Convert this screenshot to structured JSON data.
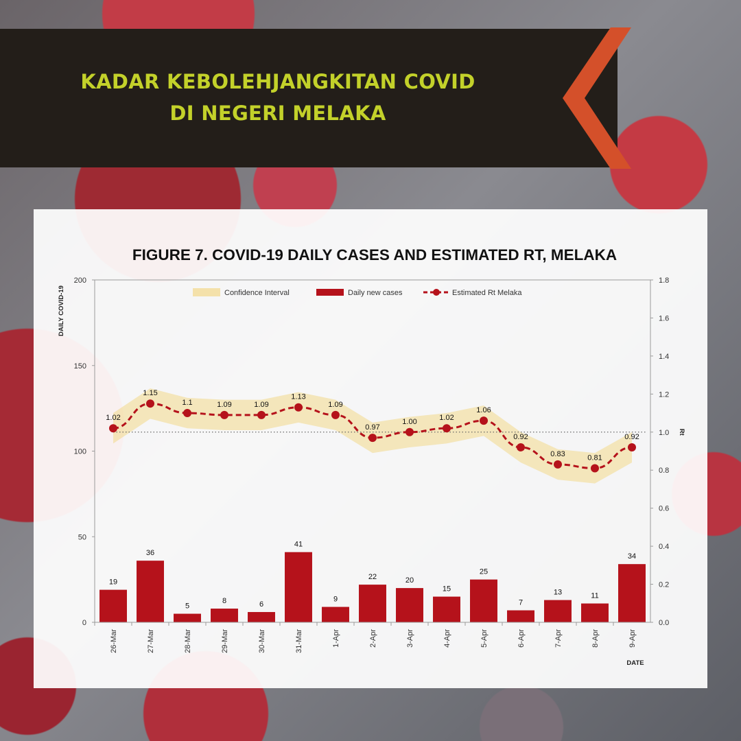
{
  "header": {
    "title_line1": "KADAR KEBOLEHJANGKITAN COVID",
    "title_line2": "DI NEGERI MELAKA"
  },
  "colors": {
    "banner": "#231e19",
    "title": "#c3d12a",
    "chevron": "#d4502a",
    "bar": "#b5121b",
    "line": "#b5121b",
    "ci_band": "#f3d98a"
  },
  "chart_data": {
    "type": "bar",
    "title": "FIGURE 7. COVID-19 DAILY CASES AND ESTIMATED RT, MELAKA",
    "xlabel": "DATE",
    "ylabel": "DAILY COVID-19",
    "y2label": "Rt",
    "categories": [
      "26-Mar",
      "27-Mar",
      "28-Mar",
      "29-Mar",
      "30-Mar",
      "31-Mar",
      "1-Apr",
      "2-Apr",
      "3-Apr",
      "4-Apr",
      "5-Apr",
      "6-Apr",
      "7-Apr",
      "8-Apr",
      "9-Apr"
    ],
    "ylim": [
      0,
      200
    ],
    "yticks": [
      "0",
      "50",
      "100",
      "150",
      "200"
    ],
    "y2lim": [
      0,
      1.8
    ],
    "y2ticks": [
      "0.0",
      "0.2",
      "0.4",
      "0.6",
      "0.8",
      "1.0",
      "1.2",
      "1.4",
      "1.6",
      "1.8"
    ],
    "legend": [
      "Confidence Interval",
      "Daily new cases",
      "Estimated Rt Melaka"
    ],
    "legend_position": "top-center",
    "series": [
      {
        "name": "Daily new cases",
        "type": "bar",
        "axis": "left",
        "values": [
          19,
          36,
          5,
          8,
          6,
          41,
          9,
          22,
          20,
          15,
          25,
          7,
          13,
          11,
          34
        ]
      },
      {
        "name": "Estimated Rt Melaka",
        "type": "line",
        "axis": "right",
        "values": [
          1.02,
          1.15,
          1.1,
          1.09,
          1.09,
          1.13,
          1.09,
          0.97,
          1.0,
          1.02,
          1.06,
          0.92,
          0.83,
          0.81,
          0.92
        ],
        "labels": [
          "1.02",
          "1.15",
          "1.1",
          "1.09",
          "1.09",
          "1.13",
          "1.09",
          "0.97",
          "1.00",
          "1.02",
          "1.06",
          "0.92",
          "0.83",
          "0.81",
          "0.92"
        ]
      },
      {
        "name": "Confidence Interval",
        "type": "area",
        "axis": "right",
        "lower": [
          0.94,
          1.07,
          1.02,
          1.01,
          1.01,
          1.05,
          1.01,
          0.89,
          0.92,
          0.94,
          0.98,
          0.84,
          0.75,
          0.73,
          0.84
        ],
        "upper": [
          1.1,
          1.23,
          1.18,
          1.17,
          1.17,
          1.21,
          1.17,
          1.05,
          1.08,
          1.1,
          1.14,
          1.0,
          0.91,
          0.89,
          1.0
        ]
      }
    ],
    "reference_line": 1.0,
    "grid": false
  }
}
